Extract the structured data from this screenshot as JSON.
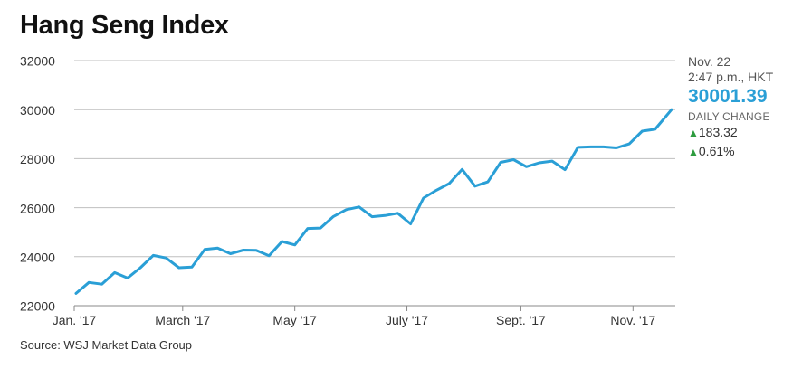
{
  "title": "Hang Seng Index",
  "readout": {
    "date": "Nov. 22",
    "time": "2:47 p.m., HKT",
    "value": "30001.39",
    "daily_change_label": "DAILY CHANGE",
    "change_points": "183.32",
    "change_percent": "0.61%",
    "up_arrow": "▲"
  },
  "source": "Source: WSJ Market Data Group",
  "colors": {
    "line": "#2a9fd6",
    "up": "#2e9c3f",
    "grid": "#bfbfbf"
  },
  "chart_data": {
    "type": "line",
    "title": "Hang Seng Index",
    "ylim": [
      22000,
      32000
    ],
    "yticks": [
      22000,
      24000,
      26000,
      28000,
      30000,
      32000
    ],
    "ytick_labels": [
      "22000",
      "24000",
      "26000",
      "28000",
      "30000",
      "32000"
    ],
    "xlim": [
      "2017-01-01",
      "2017-11-24"
    ],
    "xticks": [
      {
        "date": "2017-01-01",
        "label": "Jan. '17"
      },
      {
        "date": "2017-03-01",
        "label": "March '17"
      },
      {
        "date": "2017-05-01",
        "label": "May '17"
      },
      {
        "date": "2017-07-01",
        "label": "July '17"
      },
      {
        "date": "2017-09-01",
        "label": "Sept. '17"
      },
      {
        "date": "2017-11-01",
        "label": "Nov. '17"
      }
    ],
    "grid": true,
    "series": [
      {
        "points": [
          [
            "2017-01-02",
            22500
          ],
          [
            "2017-01-09",
            22950
          ],
          [
            "2017-01-16",
            22880
          ],
          [
            "2017-01-23",
            23350
          ],
          [
            "2017-01-30",
            23130
          ],
          [
            "2017-02-06",
            23550
          ],
          [
            "2017-02-13",
            24050
          ],
          [
            "2017-02-20",
            23950
          ],
          [
            "2017-02-27",
            23550
          ],
          [
            "2017-03-06",
            23580
          ],
          [
            "2017-03-13",
            24300
          ],
          [
            "2017-03-20",
            24350
          ],
          [
            "2017-03-27",
            24120
          ],
          [
            "2017-04-03",
            24270
          ],
          [
            "2017-04-10",
            24260
          ],
          [
            "2017-04-17",
            24040
          ],
          [
            "2017-04-24",
            24620
          ],
          [
            "2017-05-01",
            24480
          ],
          [
            "2017-05-08",
            25150
          ],
          [
            "2017-05-15",
            25170
          ],
          [
            "2017-05-22",
            25640
          ],
          [
            "2017-05-29",
            25920
          ],
          [
            "2017-06-05",
            26030
          ],
          [
            "2017-06-12",
            25630
          ],
          [
            "2017-06-19",
            25680
          ],
          [
            "2017-06-26",
            25770
          ],
          [
            "2017-07-03",
            25340
          ],
          [
            "2017-07-10",
            26390
          ],
          [
            "2017-07-17",
            26710
          ],
          [
            "2017-07-24",
            26980
          ],
          [
            "2017-07-31",
            27560
          ],
          [
            "2017-08-07",
            26880
          ],
          [
            "2017-08-14",
            27050
          ],
          [
            "2017-08-21",
            27850
          ],
          [
            "2017-08-28",
            27960
          ],
          [
            "2017-09-04",
            27670
          ],
          [
            "2017-09-11",
            27830
          ],
          [
            "2017-09-18",
            27900
          ],
          [
            "2017-09-25",
            27550
          ],
          [
            "2017-10-02",
            28460
          ],
          [
            "2017-10-09",
            28480
          ],
          [
            "2017-10-16",
            28480
          ],
          [
            "2017-10-23",
            28440
          ],
          [
            "2017-10-30",
            28600
          ],
          [
            "2017-11-06",
            29120
          ],
          [
            "2017-11-13",
            29200
          ],
          [
            "2017-11-22",
            30001.39
          ]
        ]
      }
    ]
  }
}
